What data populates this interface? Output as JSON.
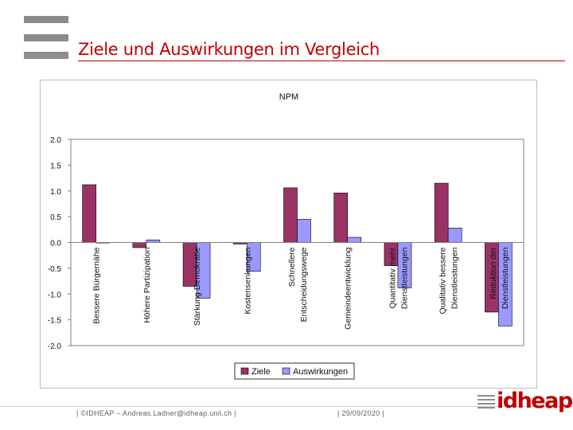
{
  "slide": {
    "title": "Ziele und Auswirkungen im Vergleich",
    "footer_left": "| ©IDHEAP – Andreas.Ladner@idheap.unil.ch |",
    "footer_date": "| 29/09/2020 |",
    "logo_text": "idheap",
    "menu_icon": "hamburger-menu-icon",
    "accent_color": "#c00000"
  },
  "chart_data": {
    "type": "bar",
    "title": "NPM",
    "xlabel": "",
    "ylabel": "",
    "ylim": [
      -2.0,
      2.0
    ],
    "yticks": [
      "2.0",
      "1.5",
      "1.0",
      "0.5",
      "0.0",
      "-0.5",
      "-1.0",
      "-1.5",
      "-2.0"
    ],
    "ytick_values": [
      2.0,
      1.5,
      1.0,
      0.5,
      0.0,
      -0.5,
      -1.0,
      -1.5,
      -2.0
    ],
    "grid": false,
    "legend_position": "bottom",
    "categories": [
      [
        "Bessere Bürgernähe"
      ],
      [
        "Höhere Partizipation"
      ],
      [
        "Stärkung Demokratie"
      ],
      [
        "Kostensenkungen"
      ],
      [
        "Schnellere",
        "Entscheidungswege"
      ],
      [
        "Gemeindeentwicklung"
      ],
      [
        "Quantitativ mehr",
        "Dienstleistungen"
      ],
      [
        "Qualitativ bessere",
        "Dienstleistungen"
      ],
      [
        "Reduktion der",
        "Dienstleistungen"
      ]
    ],
    "series": [
      {
        "name": "Ziele",
        "color": "#993366",
        "values": [
          1.12,
          -0.1,
          -0.85,
          -0.03,
          1.06,
          0.96,
          -0.45,
          1.15,
          -1.35
        ]
      },
      {
        "name": "Auswirkungen",
        "color": "#9999ff",
        "values": [
          0.0,
          0.05,
          -1.08,
          -0.56,
          0.45,
          0.1,
          -0.88,
          0.28,
          -1.62
        ]
      }
    ]
  }
}
